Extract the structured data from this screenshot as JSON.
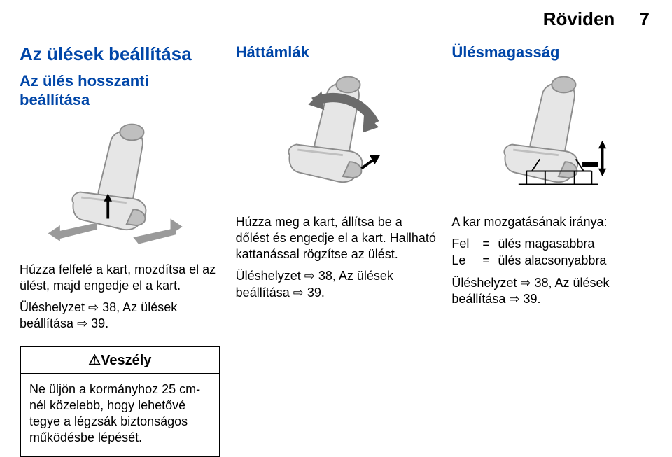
{
  "header": {
    "running_title": "Röviden",
    "page_number": "7"
  },
  "palette": {
    "heading_blue": "#0046a8",
    "seat_light": "#e6e6e6",
    "seat_mid": "#bfbfbf",
    "seat_dark": "#8c8c8c",
    "arrow_rot": "#6b6b6b",
    "arrow_flat": "#9a9a9a"
  },
  "col1": {
    "main_heading": "Az ülések beállítása",
    "sub_heading": "Az ülés hosszanti beállítása",
    "body": "Húzza felfelé a kart, mozdítsa el az ülést, majd engedje el a kart.",
    "ref_pre": "Üléshelyzet ",
    "ref_sym1": "⇨",
    "ref_p1": " 38, Az ülések beállítása ",
    "ref_sym2": "⇨",
    "ref_p2": " 39.",
    "warn_title": "⚠Veszély",
    "warn_body": "Ne üljön a kormányhoz 25 cm-nél közelebb, hogy lehetővé tegye a légzsák biztonságos működésbe lépését."
  },
  "col2": {
    "sub_heading": "Háttámlák",
    "body": "Húzza meg a kart, állítsa be a dőlést és engedje el a kart. Hallható kattanással rögzítse az ülést.",
    "ref_pre": "Üléshelyzet ",
    "ref_sym1": "⇨",
    "ref_p1": " 38, Az ülések beállítása ",
    "ref_sym2": "⇨",
    "ref_p2": " 39."
  },
  "col3": {
    "sub_heading": "Ülésmagasság",
    "lead": "A kar mozgatásának iránya:",
    "rows": [
      {
        "k": "Fel",
        "eq": "=",
        "v": "ülés magasabbra"
      },
      {
        "k": "Le",
        "eq": "=",
        "v": "ülés alacsonyabbra"
      }
    ],
    "ref_pre": "Üléshelyzet ",
    "ref_sym1": "⇨",
    "ref_p1": " 38, Az ülések beállítása ",
    "ref_sym2": "⇨",
    "ref_p2": " 39."
  },
  "figures": {
    "col1": {
      "show_slide_arrows": true,
      "show_recline_arrow": false,
      "show_height_arrows": false,
      "show_height_frame": false
    },
    "col2": {
      "show_slide_arrows": false,
      "show_recline_arrow": true,
      "show_height_arrows": false,
      "show_height_frame": false
    },
    "col3": {
      "show_slide_arrows": false,
      "show_recline_arrow": false,
      "show_height_arrows": true,
      "show_height_frame": true
    }
  }
}
